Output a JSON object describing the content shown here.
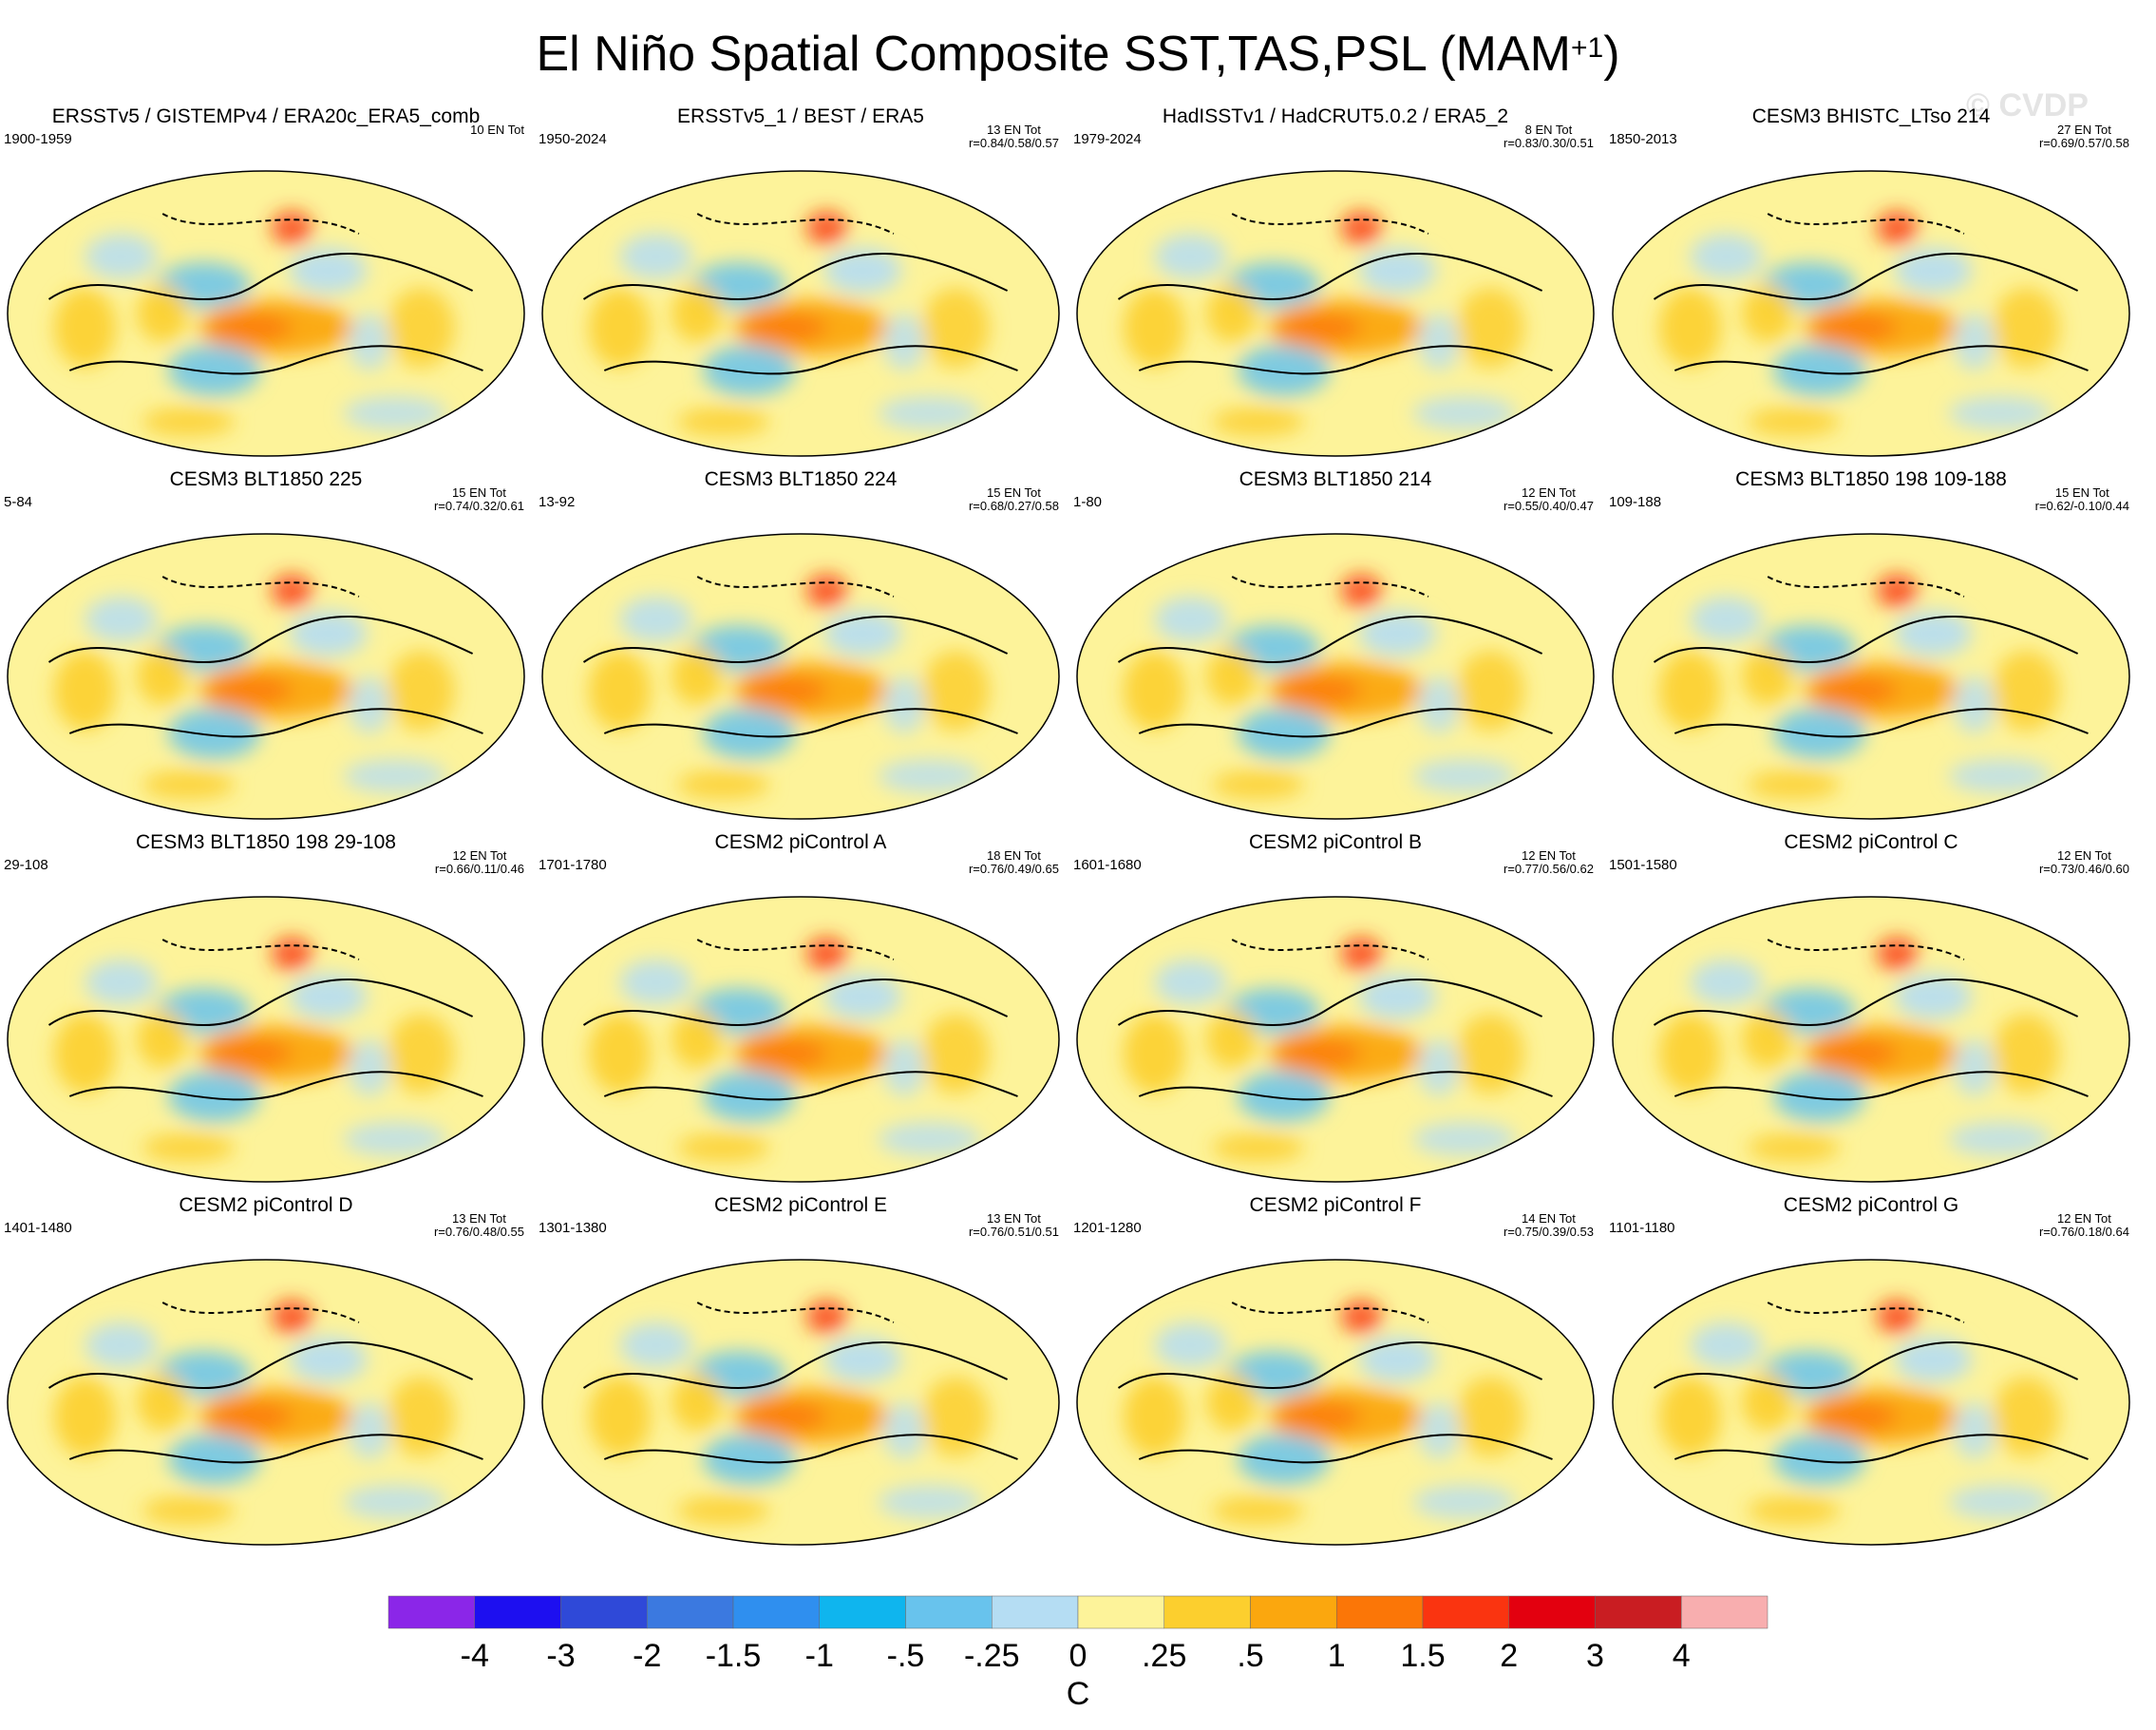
{
  "title": {
    "main": "El Niño Spatial Composite SST,TAS,PSL (MAM",
    "sup": "+1",
    "close": ")"
  },
  "watermark": "© CVDP",
  "chart_data": {
    "type": "heatmap",
    "projection": "global map panels",
    "units": "C",
    "panels": [
      {
        "title": "ERSSTv5 / GISTEMPv4 / ERA20c_ERA5_comb",
        "years": "1900-1959",
        "events": "10 EN Tot",
        "corr": ""
      },
      {
        "title": "ERSSTv5_1 / BEST / ERA5",
        "years": "1950-2024",
        "events": "13 EN Tot",
        "corr": "r=0.84/0.58/0.57"
      },
      {
        "title": "HadISSTv1 / HadCRUT5.0.2 / ERA5_2",
        "years": "1979-2024",
        "events": "8 EN Tot",
        "corr": "r=0.83/0.30/0.51"
      },
      {
        "title": "CESM3 BHISTC_LTso 214",
        "years": "1850-2013",
        "events": "27 EN Tot",
        "corr": "r=0.69/0.57/0.58"
      },
      {
        "title": "CESM3 BLT1850 225",
        "years": "5-84",
        "events": "15 EN Tot",
        "corr": "r=0.74/0.32/0.61"
      },
      {
        "title": "CESM3 BLT1850 224",
        "years": "13-92",
        "events": "15 EN Tot",
        "corr": "r=0.68/0.27/0.58"
      },
      {
        "title": "CESM3 BLT1850 214",
        "years": "1-80",
        "events": "12 EN Tot",
        "corr": "r=0.55/0.40/0.47"
      },
      {
        "title": "CESM3 BLT1850 198 109-188",
        "years": "109-188",
        "events": "15 EN Tot",
        "corr": "r=0.62/-0.10/0.44"
      },
      {
        "title": "CESM3 BLT1850 198 29-108",
        "years": "29-108",
        "events": "12 EN Tot",
        "corr": "r=0.66/0.11/0.46"
      },
      {
        "title": "CESM2 piControl A",
        "years": "1701-1780",
        "events": "18 EN Tot",
        "corr": "r=0.76/0.49/0.65"
      },
      {
        "title": "CESM2 piControl B",
        "years": "1601-1680",
        "events": "12 EN Tot",
        "corr": "r=0.77/0.56/0.62"
      },
      {
        "title": "CESM2 piControl C",
        "years": "1501-1580",
        "events": "12 EN Tot",
        "corr": "r=0.73/0.46/0.60"
      },
      {
        "title": "CESM2 piControl D",
        "years": "1401-1480",
        "events": "13 EN Tot",
        "corr": "r=0.76/0.48/0.55"
      },
      {
        "title": "CESM2 piControl E",
        "years": "1301-1380",
        "events": "13 EN Tot",
        "corr": "r=0.76/0.51/0.51"
      },
      {
        "title": "CESM2 piControl F",
        "years": "1201-1280",
        "events": "14 EN Tot",
        "corr": "r=0.75/0.39/0.53"
      },
      {
        "title": "CESM2 piControl G",
        "years": "1101-1180",
        "events": "12 EN Tot",
        "corr": "r=0.76/0.18/0.64"
      }
    ],
    "colorbar": {
      "label": "C",
      "tick_labels": [
        "-4",
        "-3",
        "-2",
        "-1.5",
        "-1",
        "-.5",
        "-.25",
        "0",
        ".25",
        ".5",
        "1",
        "1.5",
        "2",
        "3",
        "4"
      ],
      "colors": [
        "#8b26e8",
        "#1d0ff0",
        "#2f49d8",
        "#3b79e0",
        "#2f8fef",
        "#0fb5ee",
        "#68c3ed",
        "#b5ddf3",
        "#fdf39a",
        "#fccf2e",
        "#fba70e",
        "#fb7607",
        "#fa3410",
        "#e3000f",
        "#c91d22",
        "#f8aeaf"
      ]
    }
  }
}
